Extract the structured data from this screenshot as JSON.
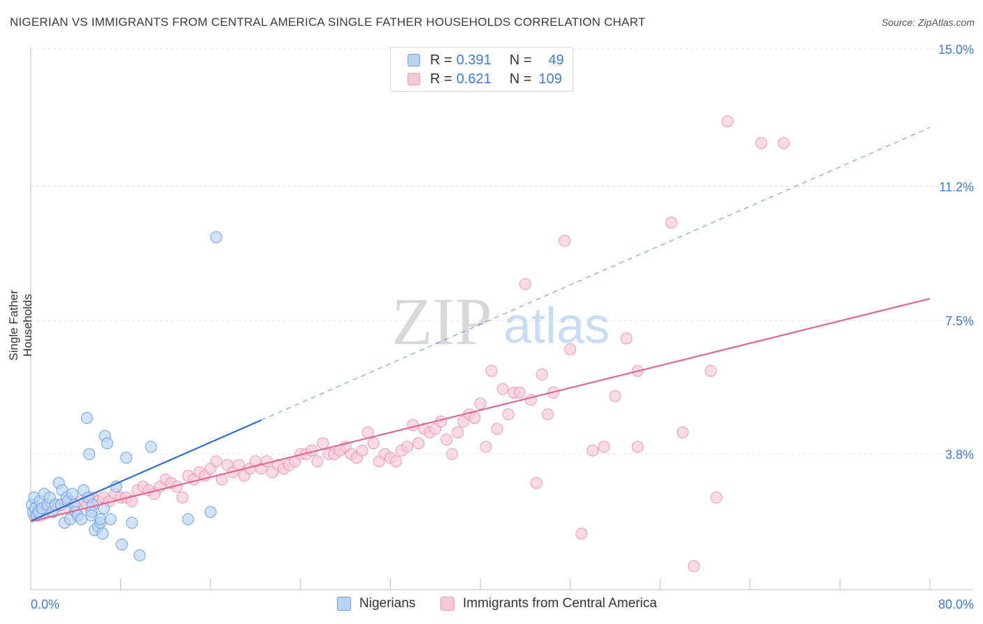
{
  "title": "NIGERIAN VS IMMIGRANTS FROM CENTRAL AMERICA SINGLE FATHER HOUSEHOLDS CORRELATION CHART",
  "source": "Source: ZipAtlas.com",
  "watermark": {
    "zip": "ZIP",
    "atlas": "atlas"
  },
  "legend": {
    "r_label": "R =",
    "n_label": "N =",
    "series": [
      {
        "name": "Nigerians",
        "r": "0.391",
        "n": "49",
        "fill": "#b8d4f5",
        "stroke": "#6fa0e0"
      },
      {
        "name": "Immigrants from Central America",
        "r": "0.621",
        "n": "109",
        "fill": "#f8c7d6",
        "stroke": "#e99ab4"
      }
    ]
  },
  "chart_data": {
    "type": "scatter",
    "title": "NIGERIAN VS IMMIGRANTS FROM CENTRAL AMERICA SINGLE FATHER HOUSEHOLDS CORRELATION CHART",
    "xlabel": "",
    "ylabel": "Single Father Households",
    "xlim": [
      0,
      80
    ],
    "ylim": [
      0,
      15.6
    ],
    "x_tick_labels": [
      "0.0%",
      "80.0%"
    ],
    "y_ticks": [
      3.8,
      7.5,
      11.2,
      15.0
    ],
    "y_tick_labels": [
      "3.8%",
      "7.5%",
      "11.2%",
      "15.0%"
    ],
    "grid": true,
    "legend_position": "top-center",
    "series": [
      {
        "name": "Nigerians",
        "color": "#6fa0e0",
        "fill": "#b8d4f5",
        "trend": {
          "color": "#2f6fd4",
          "solid_x": [
            0,
            20.5
          ],
          "dashed_x": [
            20.5,
            80
          ],
          "y_at_0": 1.95,
          "slope": 0.136
        },
        "points": [
          [
            0.1,
            2.4
          ],
          [
            0.2,
            2.2
          ],
          [
            0.3,
            2.6
          ],
          [
            0.4,
            2.3
          ],
          [
            0.5,
            2.1
          ],
          [
            0.7,
            2.2
          ],
          [
            0.8,
            2.5
          ],
          [
            1.0,
            2.3
          ],
          [
            1.2,
            2.7
          ],
          [
            1.5,
            2.4
          ],
          [
            1.7,
            2.6
          ],
          [
            1.9,
            2.2
          ],
          [
            2.2,
            2.4
          ],
          [
            2.5,
            3.0
          ],
          [
            2.7,
            2.4
          ],
          [
            2.8,
            2.8
          ],
          [
            3.0,
            1.9
          ],
          [
            3.2,
            2.6
          ],
          [
            3.3,
            2.5
          ],
          [
            3.5,
            2.0
          ],
          [
            3.7,
            2.7
          ],
          [
            3.9,
            2.4
          ],
          [
            4.0,
            2.2
          ],
          [
            4.2,
            2.1
          ],
          [
            4.5,
            2.0
          ],
          [
            4.7,
            2.8
          ],
          [
            5.0,
            4.8
          ],
          [
            5.1,
            2.6
          ],
          [
            5.2,
            3.8
          ],
          [
            5.5,
            2.4
          ],
          [
            5.4,
            2.2
          ],
          [
            5.4,
            2.1
          ],
          [
            5.7,
            1.7
          ],
          [
            6.0,
            1.8
          ],
          [
            6.2,
            1.9
          ],
          [
            6.2,
            2.0
          ],
          [
            6.4,
            1.6
          ],
          [
            6.5,
            2.3
          ],
          [
            6.6,
            4.3
          ],
          [
            6.8,
            4.1
          ],
          [
            7.1,
            2.0
          ],
          [
            7.6,
            2.9
          ],
          [
            8.1,
            1.3
          ],
          [
            8.5,
            3.7
          ],
          [
            9.0,
            1.9
          ],
          [
            9.7,
            1.0
          ],
          [
            10.7,
            4.0
          ],
          [
            14.0,
            2.0
          ],
          [
            16.0,
            2.2
          ],
          [
            16.5,
            9.8
          ]
        ]
      },
      {
        "name": "Immigrants from Central America",
        "color": "#e99ab4",
        "fill": "#f8c7d6",
        "trend": {
          "color": "#e0688f",
          "solid_x": [
            0,
            80
          ],
          "y_at_0": 1.93,
          "slope": 0.0771
        },
        "points": [
          [
            0.3,
            2.1
          ],
          [
            0.6,
            2.2
          ],
          [
            0.9,
            2.1
          ],
          [
            1.2,
            2.3
          ],
          [
            1.5,
            2.2
          ],
          [
            2.0,
            2.2
          ],
          [
            2.5,
            2.4
          ],
          [
            3.0,
            2.3
          ],
          [
            3.5,
            2.5
          ],
          [
            4.0,
            2.2
          ],
          [
            4.5,
            2.5
          ],
          [
            5.0,
            2.4
          ],
          [
            5.5,
            2.6
          ],
          [
            6.0,
            2.5
          ],
          [
            6.5,
            2.6
          ],
          [
            7.0,
            2.5
          ],
          [
            7.5,
            2.7
          ],
          [
            8.0,
            2.6
          ],
          [
            8.5,
            2.6
          ],
          [
            9.0,
            2.5
          ],
          [
            9.5,
            2.8
          ],
          [
            10.0,
            2.9
          ],
          [
            10.5,
            2.8
          ],
          [
            11.0,
            2.7
          ],
          [
            11.5,
            2.9
          ],
          [
            12.0,
            3.1
          ],
          [
            12.5,
            3.0
          ],
          [
            13.0,
            2.9
          ],
          [
            13.5,
            2.6
          ],
          [
            14.0,
            3.2
          ],
          [
            14.5,
            3.1
          ],
          [
            15.0,
            3.3
          ],
          [
            15.5,
            3.2
          ],
          [
            16.0,
            3.4
          ],
          [
            16.5,
            3.6
          ],
          [
            17.0,
            3.1
          ],
          [
            17.5,
            3.5
          ],
          [
            18.0,
            3.3
          ],
          [
            18.5,
            3.5
          ],
          [
            19.0,
            3.2
          ],
          [
            19.5,
            3.4
          ],
          [
            20.0,
            3.6
          ],
          [
            20.5,
            3.4
          ],
          [
            21.0,
            3.6
          ],
          [
            21.5,
            3.3
          ],
          [
            22.0,
            3.5
          ],
          [
            22.5,
            3.4
          ],
          [
            23.0,
            3.5
          ],
          [
            23.5,
            3.6
          ],
          [
            24.0,
            3.8
          ],
          [
            24.5,
            3.8
          ],
          [
            25.0,
            3.9
          ],
          [
            25.5,
            3.6
          ],
          [
            26.0,
            4.1
          ],
          [
            26.5,
            3.8
          ],
          [
            27.0,
            3.8
          ],
          [
            27.5,
            3.9
          ],
          [
            28.0,
            4.0
          ],
          [
            28.5,
            3.8
          ],
          [
            29.0,
            3.7
          ],
          [
            29.5,
            3.9
          ],
          [
            30.0,
            4.4
          ],
          [
            30.5,
            4.1
          ],
          [
            31.0,
            3.6
          ],
          [
            31.5,
            3.8
          ],
          [
            32.0,
            3.7
          ],
          [
            32.5,
            3.6
          ],
          [
            33.0,
            3.9
          ],
          [
            33.5,
            4.0
          ],
          [
            34.0,
            4.6
          ],
          [
            34.5,
            4.1
          ],
          [
            35.0,
            4.5
          ],
          [
            35.5,
            4.4
          ],
          [
            36.0,
            4.5
          ],
          [
            36.5,
            4.7
          ],
          [
            37.0,
            4.2
          ],
          [
            37.5,
            3.8
          ],
          [
            38.0,
            4.4
          ],
          [
            38.5,
            4.7
          ],
          [
            39.0,
            4.9
          ],
          [
            39.5,
            4.8
          ],
          [
            40.0,
            5.2
          ],
          [
            40.5,
            4.0
          ],
          [
            41.0,
            6.1
          ],
          [
            41.5,
            4.5
          ],
          [
            42.0,
            5.6
          ],
          [
            42.5,
            4.9
          ],
          [
            43.0,
            5.5
          ],
          [
            43.5,
            5.5
          ],
          [
            44.0,
            8.5
          ],
          [
            44.5,
            5.3
          ],
          [
            45.0,
            3.0
          ],
          [
            45.5,
            6.0
          ],
          [
            46.0,
            4.9
          ],
          [
            46.5,
            5.5
          ],
          [
            47.5,
            9.7
          ],
          [
            48.0,
            6.7
          ],
          [
            49.0,
            1.6
          ],
          [
            50.0,
            3.9
          ],
          [
            51.0,
            4.0
          ],
          [
            52.0,
            5.4
          ],
          [
            53.0,
            7.0
          ],
          [
            54.0,
            6.1
          ],
          [
            54.0,
            4.0
          ],
          [
            57.0,
            10.2
          ],
          [
            58.0,
            4.4
          ],
          [
            59.0,
            0.7
          ],
          [
            60.5,
            6.1
          ],
          [
            61.0,
            2.6
          ],
          [
            62.0,
            13.0
          ],
          [
            65.0,
            12.4
          ],
          [
            67.0,
            12.4
          ]
        ]
      }
    ]
  }
}
